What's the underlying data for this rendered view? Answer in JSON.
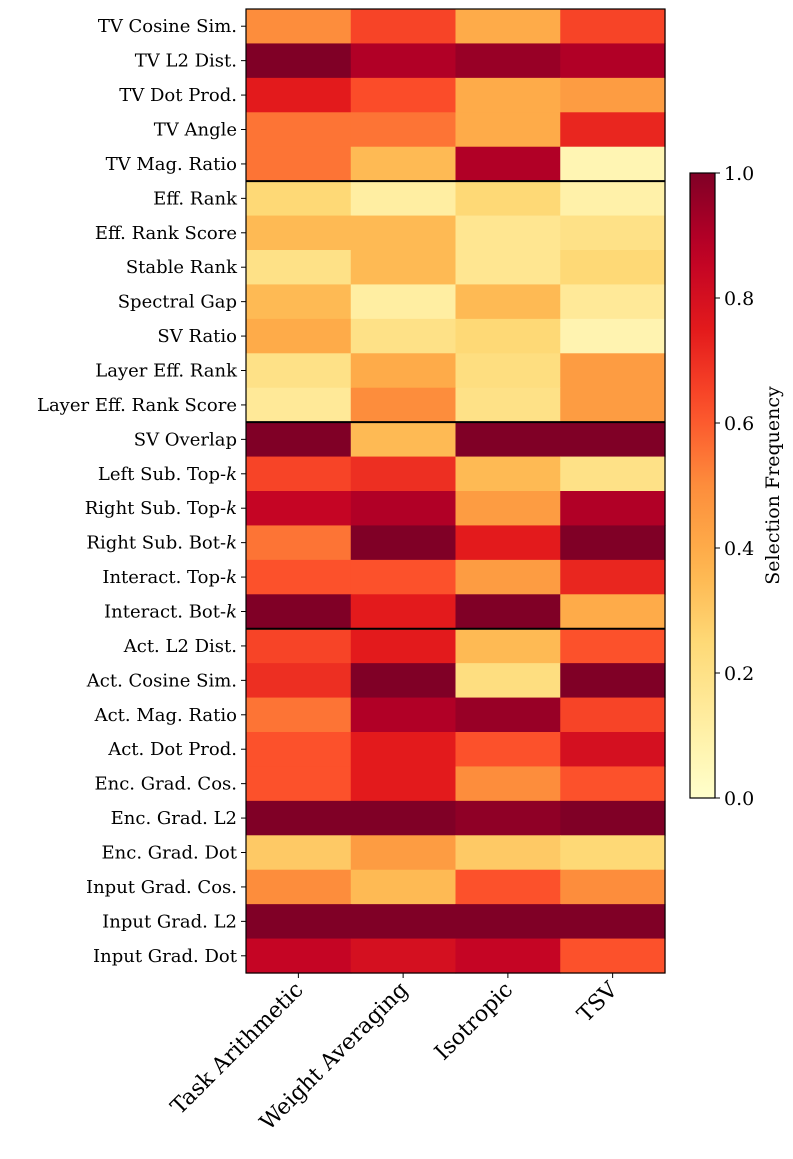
{
  "chart_data": {
    "type": "heatmap",
    "columns": [
      "Task Arithmetic",
      "Weight Averaging",
      "Isotropic",
      "TSV"
    ],
    "rows": [
      "TV Cosine Sim.",
      "TV L2 Dist.",
      "TV Dot Prod.",
      "TV Angle",
      "TV Mag. Ratio",
      "Eff. Rank",
      "Eff. Rank Score",
      "Stable Rank",
      "Spectral Gap",
      "SV Ratio",
      "Layer Eff. Rank",
      "Layer Eff. Rank Score",
      "SV Overlap",
      "Left Sub. Top-k",
      "Right Sub. Top-k",
      "Right Sub. Bot-k",
      "Interact. Top-k",
      "Interact. Bot-k",
      "Act. L2 Dist.",
      "Act. Cosine Sim.",
      "Act. Mag. Ratio",
      "Act. Dot Prod.",
      "Enc. Grad. Cos.",
      "Enc. Grad. L2",
      "Enc. Grad. Dot",
      "Input Grad. Cos.",
      "Input Grad. L2",
      "Input Grad. Dot"
    ],
    "values": [
      [
        0.5,
        0.65,
        0.4,
        0.65
      ],
      [
        1.0,
        0.9,
        0.95,
        0.9
      ],
      [
        0.75,
        0.63,
        0.4,
        0.45
      ],
      [
        0.55,
        0.55,
        0.4,
        0.72
      ],
      [
        0.55,
        0.35,
        0.9,
        0.07
      ],
      [
        0.25,
        0.12,
        0.25,
        0.1
      ],
      [
        0.35,
        0.35,
        0.17,
        0.2
      ],
      [
        0.2,
        0.35,
        0.17,
        0.25
      ],
      [
        0.35,
        0.12,
        0.35,
        0.15
      ],
      [
        0.4,
        0.2,
        0.25,
        0.08
      ],
      [
        0.2,
        0.4,
        0.22,
        0.45
      ],
      [
        0.15,
        0.5,
        0.2,
        0.45
      ],
      [
        1.0,
        0.35,
        1.0,
        1.0
      ],
      [
        0.65,
        0.7,
        0.35,
        0.2
      ],
      [
        0.85,
        0.9,
        0.45,
        0.9
      ],
      [
        0.55,
        1.0,
        0.75,
        1.0
      ],
      [
        0.62,
        0.62,
        0.45,
        0.72
      ],
      [
        1.0,
        0.75,
        1.0,
        0.4
      ],
      [
        0.65,
        0.75,
        0.35,
        0.62
      ],
      [
        0.7,
        1.0,
        0.22,
        1.0
      ],
      [
        0.55,
        0.9,
        0.95,
        0.65
      ],
      [
        0.62,
        0.75,
        0.62,
        0.8
      ],
      [
        0.62,
        0.75,
        0.5,
        0.62
      ],
      [
        1.0,
        1.0,
        0.97,
        1.0
      ],
      [
        0.3,
        0.45,
        0.3,
        0.25
      ],
      [
        0.5,
        0.35,
        0.62,
        0.5
      ],
      [
        1.0,
        1.0,
        1.0,
        1.0
      ],
      [
        0.85,
        0.8,
        0.85,
        0.62
      ]
    ],
    "group_boundaries_after_row": [
      4,
      11,
      17
    ],
    "colormap": "YlOrRd",
    "vmin": 0.0,
    "vmax": 1.0,
    "colorbar": {
      "label": "Selection Frequency",
      "ticks": [
        "0.0",
        "0.2",
        "0.4",
        "0.6",
        "0.8",
        "1.0"
      ],
      "tick_values": [
        0.0,
        0.2,
        0.4,
        0.6,
        0.8,
        1.0
      ]
    },
    "title": "",
    "xlabel": "",
    "ylabel": ""
  }
}
